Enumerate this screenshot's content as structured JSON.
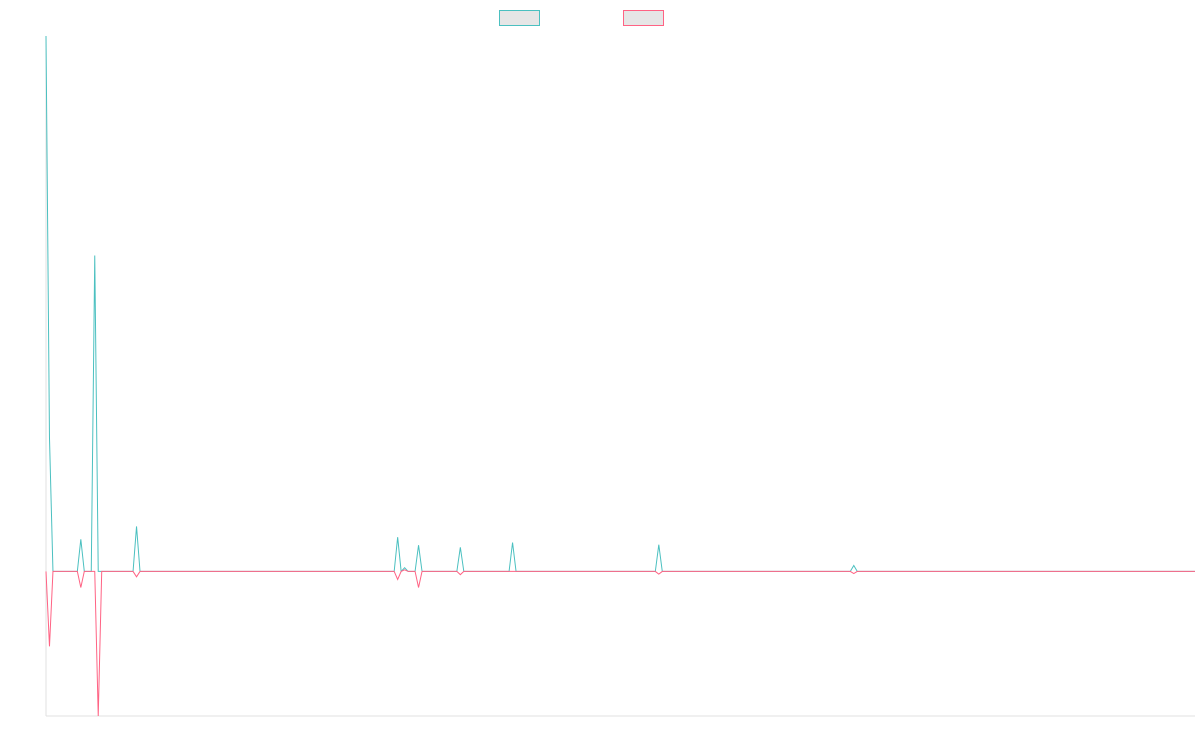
{
  "chart_data": {
    "type": "line",
    "x": [
      0,
      1,
      2,
      9,
      10,
      11,
      13,
      14,
      15,
      16,
      25,
      26,
      27,
      100,
      101,
      102,
      103,
      104,
      106,
      107,
      108,
      118,
      119,
      120,
      133,
      134,
      135,
      175,
      176,
      177,
      231,
      232,
      233,
      330
    ],
    "xlim": [
      0,
      330
    ],
    "ylim": [
      -27,
      100
    ],
    "legend": "top",
    "series": [
      {
        "color": "#4bc0c0",
        "values": [
          100,
          25,
          0,
          0,
          6,
          0,
          0,
          59,
          0,
          0,
          0,
          8.4,
          0,
          0,
          6.4,
          0,
          0.7,
          0,
          0,
          4.9,
          0,
          0,
          4.5,
          0,
          0,
          5.4,
          0,
          0,
          5,
          0,
          0,
          1.1,
          0,
          0
        ]
      },
      {
        "color": "#ff6384",
        "values": [
          0,
          -14,
          0,
          0,
          -3,
          0,
          0,
          0,
          -27,
          0,
          0,
          -1,
          0,
          0,
          -1.5,
          0,
          0.3,
          0,
          0,
          -3,
          0,
          0,
          -0.6,
          0,
          0,
          0,
          0,
          0,
          -0.5,
          0,
          0,
          -0.4,
          0,
          0
        ]
      }
    ]
  }
}
